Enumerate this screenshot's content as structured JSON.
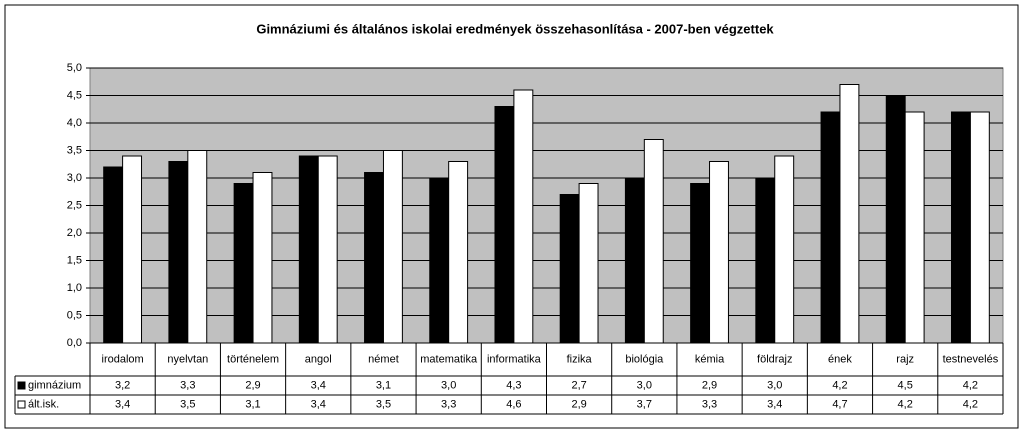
{
  "chart_data": {
    "type": "bar",
    "title": "Gimnáziumi és általános iskolai eredmények összehasonlítása - 2007-ben végzettek",
    "categories": [
      "irodalom",
      "nyelvtan",
      "történelem",
      "angol",
      "német",
      "matematika",
      "informatika",
      "fizika",
      "biológia",
      "kémia",
      "földrajz",
      "ének",
      "rajz",
      "testnevelés"
    ],
    "series": [
      {
        "name": "gimnázium",
        "color": "#000000",
        "values": [
          3.2,
          3.3,
          2.9,
          3.4,
          3.1,
          3.0,
          4.3,
          2.7,
          3.0,
          2.9,
          3.0,
          4.2,
          4.5,
          4.2
        ],
        "value_labels": [
          "3,2",
          "3,3",
          "2,9",
          "3,4",
          "3,1",
          "3,0",
          "4,3",
          "2,7",
          "3,0",
          "2,9",
          "3,0",
          "4,2",
          "4,5",
          "4,2"
        ]
      },
      {
        "name": "ált.isk.",
        "color": "#ffffff",
        "values": [
          3.4,
          3.5,
          3.1,
          3.4,
          3.5,
          3.3,
          4.6,
          2.9,
          3.7,
          3.3,
          3.4,
          4.7,
          4.2,
          4.2
        ],
        "value_labels": [
          "3,4",
          "3,5",
          "3,1",
          "3,4",
          "3,5",
          "3,3",
          "4,6",
          "2,9",
          "3,7",
          "3,3",
          "3,4",
          "4,7",
          "4,2",
          "4,2"
        ]
      }
    ],
    "ylim": [
      0,
      5
    ],
    "yticks": [
      {
        "value": 0,
        "label": "0,0"
      },
      {
        "value": 0.5,
        "label": "0,5"
      },
      {
        "value": 1,
        "label": "1,0"
      },
      {
        "value": 1.5,
        "label": "1,5"
      },
      {
        "value": 2,
        "label": "2,0"
      },
      {
        "value": 2.5,
        "label": "2,5"
      },
      {
        "value": 3,
        "label": "3,0"
      },
      {
        "value": 3.5,
        "label": "3,5"
      },
      {
        "value": 4,
        "label": "4,0"
      },
      {
        "value": 4.5,
        "label": "4,5"
      },
      {
        "value": 5,
        "label": "5,0"
      }
    ],
    "grid": true,
    "plot_background": "#c0c0c0"
  }
}
